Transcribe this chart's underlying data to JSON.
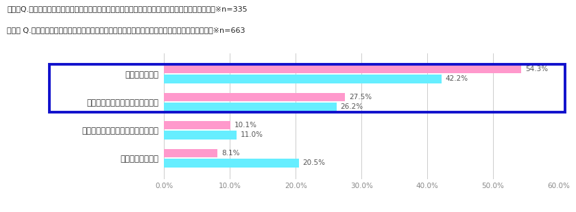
{
  "title_line1": "母親　Q.受験期にお子様の「風邪・インフルエンザ」予防対策をしていましたか？　（単一回答）　※n=335",
  "title_line2": "受験生 Q.受験期に「風邪・インフルエンザ」予防として対策をしていましたか？　（単一回答）　※n=663",
  "categories": [
    "対策をしていた",
    "どちらかと言うと対策をしていた",
    "どちらかと言うと対策をしていない",
    "対策をしていない"
  ],
  "haha_values": [
    54.3,
    27.5,
    10.1,
    8.1
  ],
  "juken_values": [
    42.2,
    26.2,
    11.0,
    20.5
  ],
  "haha_color": "#FF99CC",
  "juken_color": "#66EEFF",
  "haha_label": "母親",
  "juken_label": "受験生",
  "xlim": [
    0,
    60
  ],
  "xtick_values": [
    0,
    10,
    20,
    30,
    40,
    50,
    60
  ],
  "xtick_labels": [
    "0.0%",
    "10.0%",
    "20.0%",
    "30.0%",
    "40.0%",
    "50.0%",
    "60.0%"
  ],
  "box_color": "#1010CC",
  "background_color": "#FFFFFF",
  "title_fontsize": 8.0,
  "label_fontsize": 8.5,
  "value_fontsize": 7.5,
  "tick_fontsize": 7.5,
  "legend_fontsize": 9.0
}
